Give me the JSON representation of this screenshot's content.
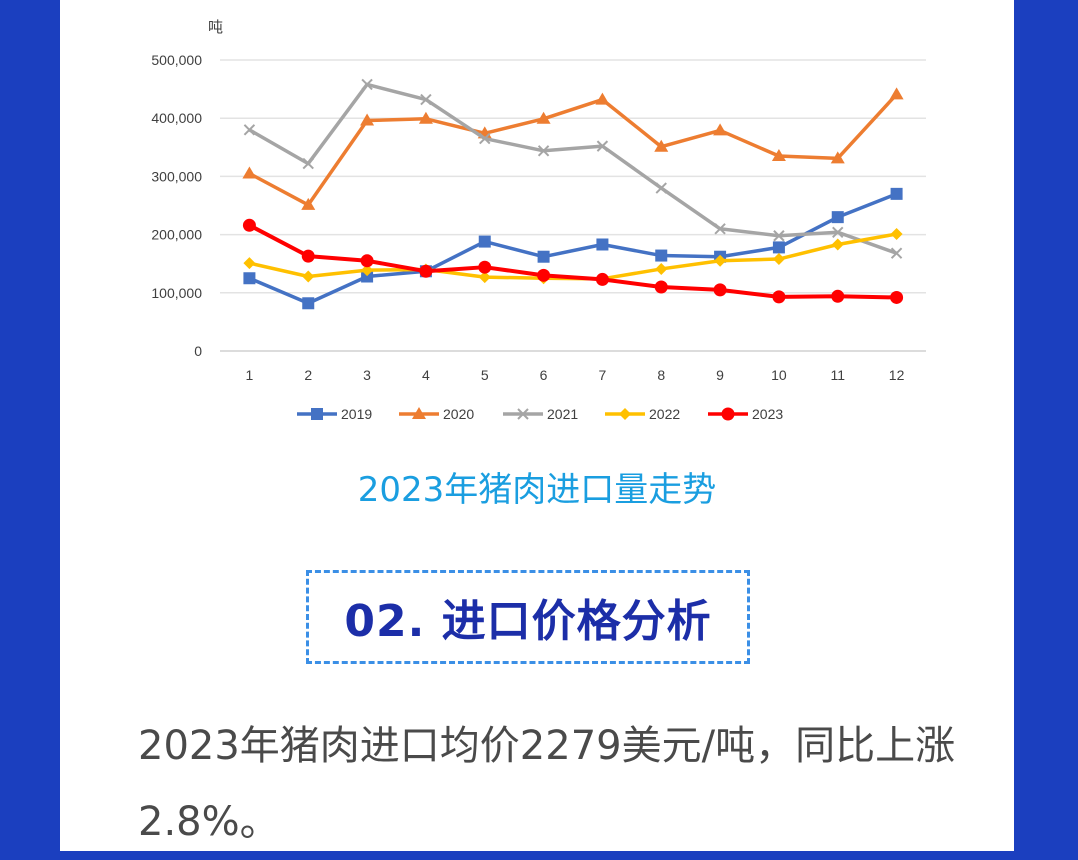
{
  "chart_data": {
    "type": "line",
    "unit_label": "吨",
    "categories": [
      "1",
      "2",
      "3",
      "4",
      "5",
      "6",
      "7",
      "8",
      "9",
      "10",
      "11",
      "12"
    ],
    "ylim": [
      0,
      500000
    ],
    "yticks": [
      0,
      100000,
      200000,
      300000,
      400000,
      500000
    ],
    "ytick_labels": [
      "0",
      "100,000",
      "200,000",
      "300,000",
      "400,000",
      "500,000"
    ],
    "grid": true,
    "legend_position": "bottom",
    "series": [
      {
        "name": "2019",
        "color": "#4472c4",
        "marker": "square",
        "values": [
          125000,
          82000,
          128000,
          137000,
          188000,
          162000,
          183000,
          164000,
          162000,
          178000,
          230000,
          270000
        ]
      },
      {
        "name": "2020",
        "color": "#ed7d31",
        "marker": "triangle",
        "values": [
          305000,
          251000,
          396000,
          399000,
          374000,
          399000,
          432000,
          351000,
          379000,
          335000,
          331000,
          441000
        ]
      },
      {
        "name": "2021",
        "color": "#a5a5a5",
        "marker": "x",
        "values": [
          380000,
          322000,
          458000,
          432000,
          365000,
          344000,
          352000,
          280000,
          210000,
          198000,
          204000,
          168000
        ]
      },
      {
        "name": "2022",
        "color": "#ffc000",
        "marker": "diamond",
        "values": [
          151000,
          128000,
          139000,
          140000,
          127000,
          125000,
          124000,
          141000,
          155000,
          158000,
          183000,
          201000
        ]
      },
      {
        "name": "2023",
        "color": "#ff0000",
        "marker": "circle",
        "values": [
          216000,
          163000,
          155000,
          137000,
          144000,
          130000,
          123000,
          110000,
          105000,
          93000,
          94000,
          92000
        ]
      }
    ]
  },
  "caption": "2023年猪肉进口量走势",
  "section": {
    "title": "02. 进口价格分析"
  },
  "body": {
    "text": "2023年猪肉进口均价2279美元/吨，同比上涨2.8%。"
  }
}
